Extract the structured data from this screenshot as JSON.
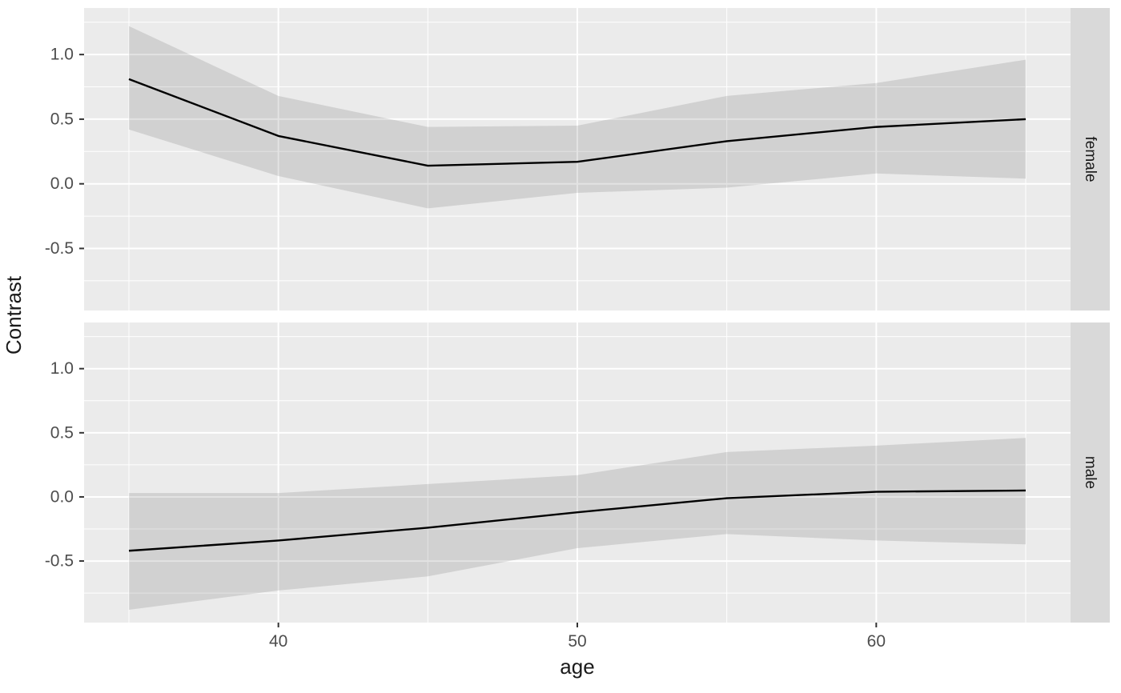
{
  "chart_data": {
    "type": "line",
    "subtype": "faceted-line-with-confidence-ribbon",
    "title": "",
    "xlabel": "age",
    "ylabel": "Contrast",
    "x_domain": [
      33.5,
      66.5
    ],
    "y_domain": [
      -0.98,
      1.36
    ],
    "grid": "on",
    "legend": "none",
    "facet_position": "right-strip",
    "x_ticks": {
      "values": [
        40,
        50,
        60
      ],
      "labels": [
        "40",
        "50",
        "60"
      ],
      "minor": [
        35,
        45,
        55,
        65
      ]
    },
    "y_ticks": {
      "values": [
        1.0,
        0.5,
        0.0,
        -0.5
      ],
      "labels": [
        "1.0",
        "0.5",
        "0.0",
        "-0.5"
      ],
      "minor": [
        1.25,
        0.75,
        0.25,
        -0.25,
        -0.75
      ]
    },
    "facets": [
      {
        "label": "female",
        "x": [
          35,
          40,
          45,
          50,
          55,
          60,
          65
        ],
        "est": [
          0.81,
          0.37,
          0.14,
          0.17,
          0.33,
          0.44,
          0.5
        ],
        "lo": [
          0.42,
          0.06,
          -0.19,
          -0.07,
          -0.03,
          0.08,
          0.04
        ],
        "hi": [
          1.22,
          0.68,
          0.44,
          0.45,
          0.68,
          0.78,
          0.96
        ]
      },
      {
        "label": "male",
        "x": [
          35,
          40,
          45,
          50,
          55,
          60,
          65
        ],
        "est": [
          -0.42,
          -0.34,
          -0.24,
          -0.12,
          -0.01,
          0.04,
          0.05
        ],
        "lo": [
          -0.88,
          -0.73,
          -0.62,
          -0.4,
          -0.29,
          -0.34,
          -0.37
        ],
        "hi": [
          0.03,
          0.03,
          0.1,
          0.17,
          0.35,
          0.4,
          0.46
        ]
      }
    ],
    "colors": {
      "panel_bg": "#EBEBEB",
      "grid": "#FFFFFF",
      "ribbon": "rgba(0,0,0,0.11)",
      "line": "#000000",
      "strip_bg": "#D9D9D9",
      "strip_text": "#1A1A1A",
      "tick_label": "#4D4D4D",
      "tick_mark": "#333333",
      "axis_title": "#1A1A1A"
    }
  }
}
